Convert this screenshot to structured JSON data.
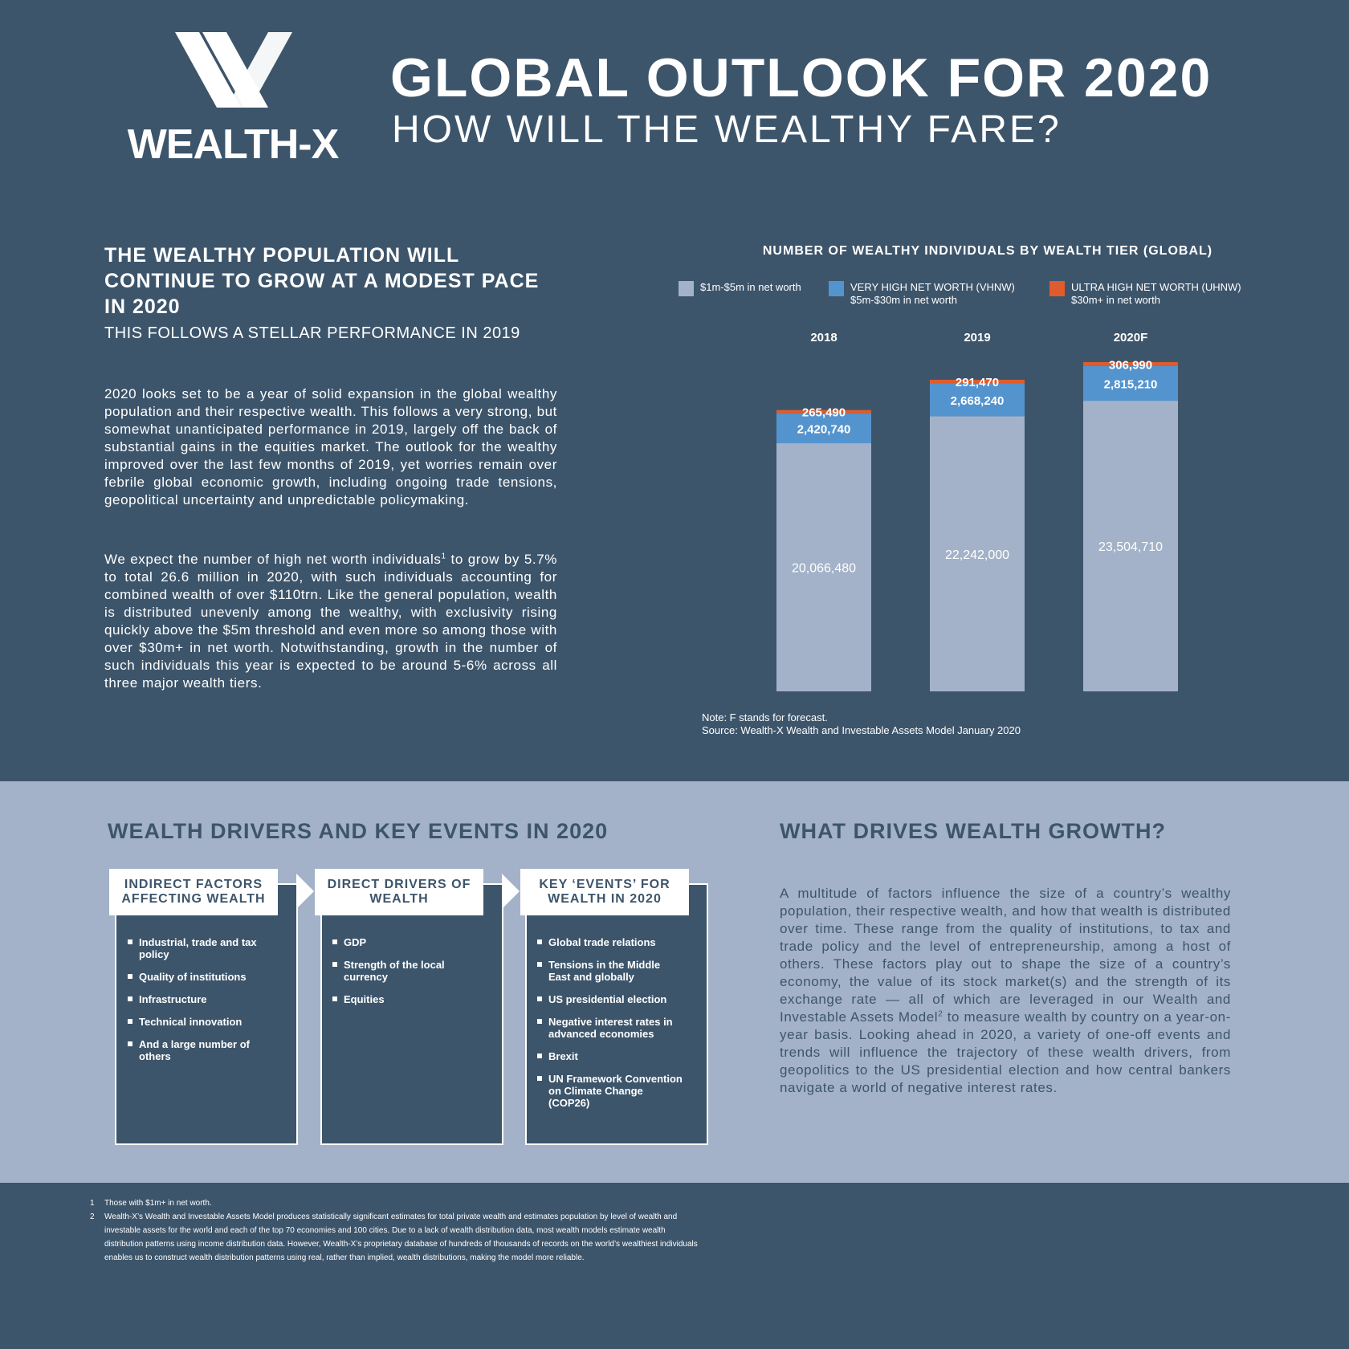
{
  "header": {
    "logo_text": "WEALTH-X",
    "title": "GLOBAL OUTLOOK FOR 2020",
    "subtitle": "HOW WILL THE WEALTHY FARE?"
  },
  "intro": {
    "headline": "THE WEALTHY POPULATION WILL CONTINUE TO GROW AT A MODEST PACE IN 2020",
    "subheadline": "THIS FOLLOWS A STELLAR PERFORMANCE IN 2019",
    "paragraph1": "2020 looks set to be a year of solid expansion in the global wealthy population and their respective wealth. This follows a very strong, but somewhat unanticipated performance in 2019, largely off the back of substantial gains in the equities market. The outlook for the wealthy improved over the last few months of 2019, yet worries remain over febrile global economic growth, including ongoing trade tensions, geopolitical uncertainty and unpredictable policymaking.",
    "paragraph2_a": "We expect the number of high net worth individuals",
    "paragraph2_sup": "1",
    "paragraph2_b": " to grow by 5.7% to total 26.6 million in 2020, with such individuals accounting for combined wealth of over $110trn. Like the general population, wealth is distributed unevenly among the wealthy, with exclusivity rising quickly above the $5m threshold and even more so among those with over $30m+ in net worth. Notwithstanding, growth in the number of such individuals this year is expected to be around 5-6% across all three major wealth tiers."
  },
  "chart_data": {
    "type": "bar",
    "stacked": true,
    "title": "NUMBER OF WEALTHY INDIVIDUALS BY WEALTH TIER (GLOBAL)",
    "categories": [
      "2018",
      "2019",
      "2020F"
    ],
    "series": [
      {
        "name": "$1m-$5m in net worth",
        "sub": "",
        "color": "#a3b2c8",
        "values": [
          20066480,
          22242000,
          23504710
        ],
        "labels": [
          "20,066,480",
          "22,242,000",
          "23,504,710"
        ]
      },
      {
        "name": "VERY HIGH NET WORTH (VHNW)",
        "sub": "$5m-$30m in net worth",
        "color": "#5494ce",
        "values": [
          2420740,
          2668240,
          2815210
        ],
        "labels": [
          "2,420,740",
          "2,668,240",
          "2,815,210"
        ]
      },
      {
        "name": "ULTRA HIGH NET WORTH (UHNW)",
        "sub": "$30m+ in net worth",
        "color": "#e05c2c",
        "values": [
          265490,
          291470,
          306990
        ],
        "labels": [
          "265,490",
          "291,470",
          "306,990"
        ]
      }
    ],
    "note": "Note: F stands for forecast.",
    "source": "Source: Wealth-X Wealth and Investable Assets Model January 2020"
  },
  "drivers": {
    "title": "WEALTH DRIVERS AND KEY EVENTS IN 2020",
    "columns": [
      {
        "heading": "INDIRECT FACTORS AFFECTING WEALTH",
        "items": [
          "Industrial, trade and tax policy",
          "Quality of institutions",
          "Infrastructure",
          "Technical innovation",
          "And a large number of others"
        ]
      },
      {
        "heading": "DIRECT DRIVERS OF WEALTH",
        "items": [
          "GDP",
          "Strength of the local currency",
          "Equities"
        ]
      },
      {
        "heading": "KEY ‘EVENTS’ FOR WEALTH IN 2020",
        "items": [
          "Global trade relations",
          "Tensions in the Middle East and globally",
          "US presidential election",
          "Negative interest rates in advanced economies",
          "Brexit",
          "UN Framework Convention on Climate Change (COP26)"
        ]
      }
    ]
  },
  "growth": {
    "title": "WHAT DRIVES WEALTH GROWTH?",
    "text_a": "A multitude of factors influence the size of a country’s wealthy population, their respective wealth, and how that wealth is distributed over time. These range from the quality of institutions, to tax and trade policy and the level of entrepreneurship, among a host of others. These factors play out to shape the size of a country’s economy, the value of its stock market(s) and the strength of its exchange rate — all of which are leveraged in our Wealth and Investable Assets Model",
    "text_sup": "2",
    "text_b": " to measure wealth by country on a year-on-year basis. Looking ahead in 2020, a variety of one-off events and trends will influence the trajectory of these wealth drivers, from geopolitics to the US presidential election and how central bankers navigate a world of negative interest rates."
  },
  "footnotes": [
    {
      "num": "1",
      "text": "Those with $1m+ in net worth."
    },
    {
      "num": "2",
      "text": "Wealth-X’s Wealth and Investable Assets Model produces statistically significant estimates for total private wealth and estimates population by level of wealth and investable assets for the world and each of the top 70 economies and 100 cities. Due to a lack of wealth distribution data, most wealth models estimate wealth distribution patterns using income distribution data. However, Wealth-X’s proprietary database of hundreds of thousands of records on the world’s wealthiest individuals enables us to construct wealth distribution patterns using real, rather than implied, wealth distributions, making the model more reliable."
    }
  ]
}
